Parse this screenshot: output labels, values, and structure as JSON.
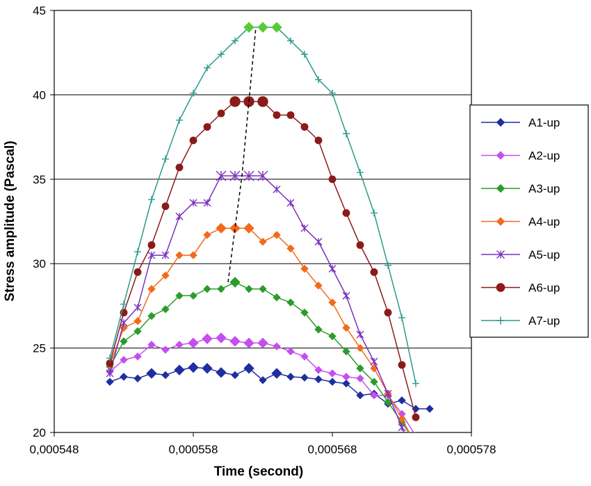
{
  "chart_data": {
    "type": "line",
    "title": "",
    "xlabel": "Time (second)",
    "ylabel": "Stress amplitude (Pascal)",
    "xlim": [
      0.000548,
      0.000578
    ],
    "ylim": [
      20,
      45
    ],
    "x_tick_labels": [
      "0,000548",
      "0,000558",
      "0,000568",
      "0,000578"
    ],
    "y_tick_labels": [
      "20",
      "25",
      "30",
      "35",
      "40",
      "45"
    ],
    "x_ticks": [
      0.000548,
      0.000558,
      0.000568,
      0.000578
    ],
    "y_ticks": [
      20,
      25,
      30,
      35,
      40,
      45
    ],
    "grid": "horizontal",
    "legend_position": "right",
    "series": [
      {
        "name": "A1-up",
        "color": "#1f2f9e",
        "marker": "diamond",
        "x": [
          0.000552,
          0.000553,
          0.000554,
          0.000555,
          0.000556,
          0.000557,
          0.000558,
          0.000559,
          0.00056,
          0.000561,
          0.000562,
          0.000563,
          0.000564,
          0.000565,
          0.000566,
          0.000567,
          0.000568,
          0.000569,
          0.00057,
          0.000571,
          0.000572,
          0.000573,
          0.000574,
          0.000575
        ],
        "y": [
          23.0,
          23.3,
          23.2,
          23.5,
          23.4,
          23.7,
          23.85,
          23.8,
          23.55,
          23.4,
          23.8,
          23.1,
          23.5,
          23.3,
          23.25,
          23.15,
          23.0,
          22.9,
          22.2,
          22.3,
          21.7,
          21.9,
          21.4,
          21.4
        ]
      },
      {
        "name": "A2-up",
        "color": "#c44ff0",
        "marker": "diamond",
        "x": [
          0.000552,
          0.000553,
          0.000554,
          0.000555,
          0.000556,
          0.000557,
          0.000558,
          0.000559,
          0.00056,
          0.000561,
          0.000562,
          0.000563,
          0.000564,
          0.000565,
          0.000566,
          0.000567,
          0.000568,
          0.000569,
          0.00057,
          0.000571,
          0.000572,
          0.000573,
          0.000574
        ],
        "y": [
          23.6,
          24.3,
          24.5,
          25.2,
          24.9,
          25.2,
          25.3,
          25.55,
          25.6,
          25.4,
          25.3,
          25.3,
          25.1,
          24.8,
          24.5,
          23.7,
          23.5,
          23.3,
          23.2,
          22.2,
          22.2,
          21.1,
          19.8
        ]
      },
      {
        "name": "A3-up",
        "color": "#2b9c2b",
        "marker": "diamond",
        "x": [
          0.000552,
          0.000553,
          0.000554,
          0.000555,
          0.000556,
          0.000557,
          0.000558,
          0.000559,
          0.00056,
          0.000561,
          0.000562,
          0.000563,
          0.000564,
          0.000565,
          0.000566,
          0.000567,
          0.000568,
          0.000569,
          0.00057,
          0.000571,
          0.000572,
          0.000573,
          0.000574
        ],
        "y": [
          23.9,
          25.4,
          26.0,
          26.9,
          27.3,
          28.1,
          28.1,
          28.5,
          28.5,
          28.9,
          28.5,
          28.5,
          28.0,
          27.7,
          27.1,
          26.1,
          25.7,
          24.8,
          23.8,
          23.0,
          21.8,
          20.6,
          19.4
        ]
      },
      {
        "name": "A4-up",
        "color": "#f26a1b",
        "marker": "diamond",
        "x": [
          0.000552,
          0.000553,
          0.000554,
          0.000555,
          0.000556,
          0.000557,
          0.000558,
          0.000559,
          0.00056,
          0.000561,
          0.000562,
          0.000563,
          0.000564,
          0.000565,
          0.000566,
          0.000567,
          0.000568,
          0.000569,
          0.00057,
          0.000571,
          0.000572,
          0.000573,
          0.000574
        ],
        "y": [
          24.0,
          26.2,
          26.6,
          28.5,
          29.3,
          30.5,
          30.5,
          31.7,
          32.1,
          32.1,
          32.1,
          31.3,
          31.7,
          30.9,
          29.7,
          28.7,
          27.7,
          26.2,
          25.0,
          23.8,
          22.3,
          20.8,
          19.3
        ]
      },
      {
        "name": "A5-up",
        "color": "#7b2fbf",
        "marker": "asterisk",
        "x": [
          0.000552,
          0.000553,
          0.000554,
          0.000555,
          0.000556,
          0.000557,
          0.000558,
          0.000559,
          0.00056,
          0.000561,
          0.000562,
          0.000563,
          0.000564,
          0.000565,
          0.000566,
          0.000567,
          0.000568,
          0.000569,
          0.00057,
          0.000571,
          0.000572,
          0.000573,
          0.000574
        ],
        "y": [
          23.5,
          26.5,
          27.4,
          30.5,
          30.5,
          32.8,
          33.6,
          33.6,
          35.2,
          35.2,
          35.2,
          35.2,
          34.4,
          33.6,
          32.1,
          31.3,
          29.7,
          28.1,
          25.8,
          24.2,
          22.3,
          20.3,
          18.5
        ]
      },
      {
        "name": "A6-up",
        "color": "#8b1a1a",
        "marker": "circle",
        "x": [
          0.000552,
          0.000553,
          0.000554,
          0.000555,
          0.000556,
          0.000557,
          0.000558,
          0.000559,
          0.00056,
          0.000561,
          0.000562,
          0.000563,
          0.000564,
          0.000565,
          0.000566,
          0.000567,
          0.000568,
          0.000569,
          0.00057,
          0.000571,
          0.000572,
          0.000573,
          0.000574
        ],
        "y": [
          24.1,
          27.1,
          29.5,
          31.1,
          33.4,
          35.7,
          37.3,
          38.1,
          38.9,
          39.6,
          39.6,
          39.6,
          38.8,
          38.8,
          38.1,
          37.3,
          35.0,
          33.0,
          31.1,
          29.5,
          27.1,
          24.0,
          20.9
        ]
      },
      {
        "name": "A7-up",
        "color": "#2a9a8a",
        "marker": "plus",
        "x": [
          0.000552,
          0.000553,
          0.000554,
          0.000555,
          0.000556,
          0.000557,
          0.000558,
          0.000559,
          0.00056,
          0.000561,
          0.000562,
          0.000563,
          0.000564,
          0.000565,
          0.000566,
          0.000567,
          0.000568,
          0.000569,
          0.00057,
          0.000571,
          0.000572,
          0.000573,
          0.000574
        ],
        "y": [
          24.4,
          27.6,
          30.7,
          33.8,
          36.2,
          38.5,
          40.1,
          41.6,
          42.4,
          43.2,
          44.0,
          44.0,
          44.0,
          43.2,
          42.4,
          40.9,
          40.1,
          37.7,
          35.4,
          33.0,
          29.9,
          26.8,
          22.9
        ]
      }
    ],
    "peak_trend_line": {
      "style": "dashed",
      "color": "#000000",
      "x": [
        0.0005605,
        0.000561,
        0.0005615,
        0.000562,
        0.0005625
      ],
      "y": [
        28.9,
        32.1,
        35.2,
        39.6,
        44.0
      ]
    },
    "highlight_colors": {
      "A3-up": "#55cc33"
    }
  }
}
